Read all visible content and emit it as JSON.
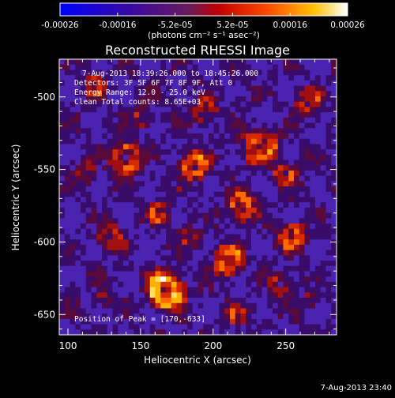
{
  "colorbar": {
    "ticks": [
      "-0.00026",
      "-0.00016",
      "-5.2e-05",
      "5.2e-05",
      "0.00016",
      "0.00026"
    ],
    "unit_label": "(photons cm⁻² s⁻¹ asec⁻²)",
    "scale_min": -0.00026,
    "scale_max": 0.00026
  },
  "plot": {
    "title": "Reconstructed RHESSI Image",
    "xlabel": "Heliocentric X (arcsec)",
    "ylabel": "Heliocentric Y (arcsec)",
    "xlim": [
      94,
      285
    ],
    "ylim": [
      -664,
      -474
    ],
    "x_ticks": [
      100,
      150,
      200,
      250
    ],
    "y_ticks": [
      -500,
      -550,
      -600,
      -650
    ],
    "info_lines": [
      "7-Aug-2013 18:39:26.000 to 18:45:26.000",
      "Detectors: 3F 5F 6F 7F 8F 9F, Att 0",
      "Energy Range: 12.0 - 25.0 keV",
      "Clean    Total counts: 8.65E+03"
    ],
    "peak_label": "Position of Peak = [170,-633]"
  },
  "footer": {
    "timestamp": "7-Aug-2013 23:40"
  },
  "colors": {
    "background": "#000000",
    "text": "#ffffff"
  }
}
